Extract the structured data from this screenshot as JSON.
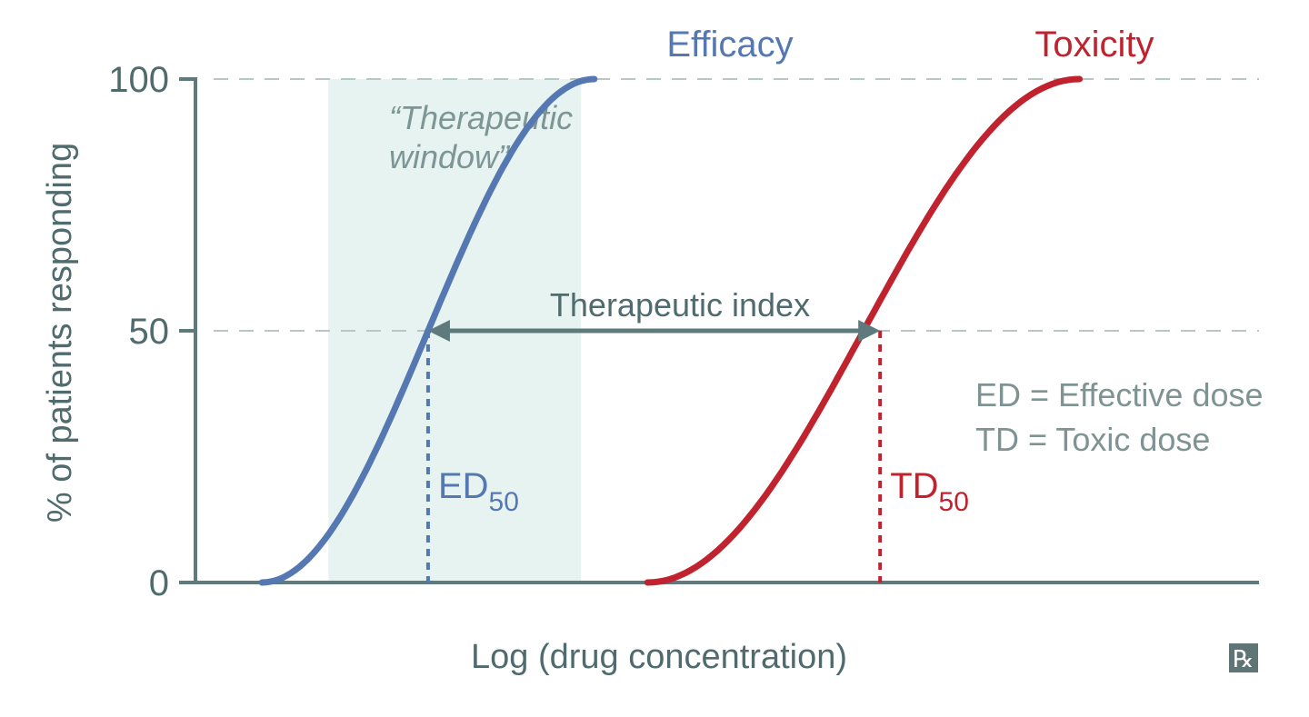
{
  "chart_data": {
    "type": "line",
    "xlabel": "Log (drug concentration)",
    "ylabel": "% of patients responding",
    "ylim": [
      0,
      100
    ],
    "y_ticks": [
      {
        "value": 0,
        "label": "0"
      },
      {
        "value": 50,
        "label": "50"
      },
      {
        "value": 100,
        "label": "100"
      }
    ],
    "grid": "dashed horizontal at 50 and 100",
    "series": [
      {
        "name": "Efficacy",
        "color": "#5578b2",
        "x_start": 1.0,
        "x_mid": 3.5,
        "x_end": 6.0
      },
      {
        "name": "Toxicity",
        "color": "#c0222e",
        "x_start": 6.8,
        "x_mid": 10.3,
        "x_end": 13.3
      }
    ],
    "xlim": [
      0,
      16
    ],
    "shaded_region": {
      "label_line1": "“Therapeutic",
      "label_line2": "window”",
      "x_from": 2.0,
      "x_to": 5.8,
      "color": "#e6f3f0"
    },
    "therapeutic_index": {
      "label": "Therapeutic index",
      "from_x": 3.5,
      "to_x": 10.3,
      "at_y": 50
    },
    "markers": [
      {
        "main": "ED",
        "sub": "50",
        "x": 3.5,
        "color": "#5578b2"
      },
      {
        "main": "TD",
        "sub": "50",
        "x": 10.3,
        "color": "#c0222e"
      }
    ],
    "legend_notes": [
      "ED = Effective dose",
      "TD = Toxic dose"
    ],
    "logo": "rx-icon"
  }
}
